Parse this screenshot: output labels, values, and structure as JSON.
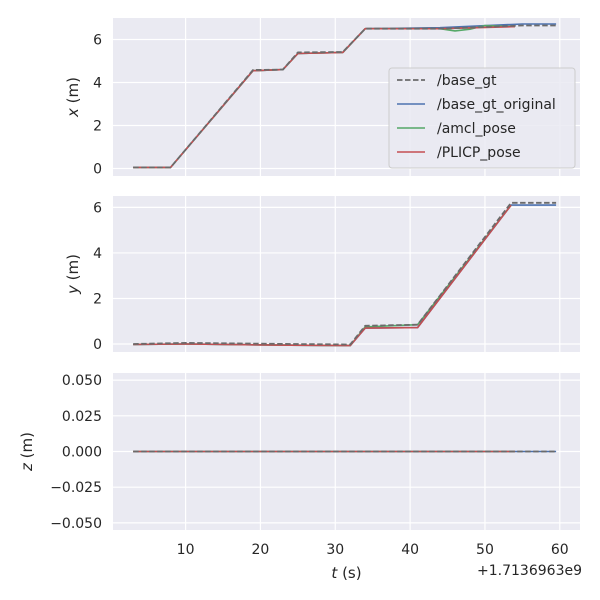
{
  "chart_data": {
    "type": "line",
    "x_offset_label": "+1.7136963e9",
    "xlabel_var": "t",
    "xlabel_unit": " (s)",
    "xlim": [
      0.3,
      62.7
    ],
    "xticks": [
      10,
      20,
      30,
      40,
      50,
      60
    ],
    "legend": {
      "location": "upper-right of top panel",
      "entries": [
        {
          "name": "/base_gt",
          "color": "#6b6b6b",
          "style": "dashed"
        },
        {
          "name": "/base_gt_original",
          "color": "#4c72b0",
          "style": "solid"
        },
        {
          "name": "/amcl_pose",
          "color": "#55a868",
          "style": "solid"
        },
        {
          "name": "/PLICP_pose",
          "color": "#c44e52",
          "style": "solid"
        }
      ]
    },
    "grid": true,
    "subplots": [
      {
        "ylabel_var": "x",
        "ylabel_unit": " (m)",
        "ylim": [
          -0.35,
          7.0
        ],
        "yticks": [
          0,
          2,
          4,
          6
        ],
        "ytick_labels": [
          "0",
          "2",
          "4",
          "6"
        ],
        "series": [
          {
            "name": "/base_gt",
            "x": [
              3,
              8,
              19,
              23,
              25,
              31,
              34,
              44,
              55,
              59.5
            ],
            "y": [
              0.05,
              0.05,
              4.58,
              4.6,
              5.4,
              5.42,
              6.5,
              6.5,
              6.65,
              6.65
            ]
          },
          {
            "name": "/base_gt_original",
            "x": [
              3,
              8,
              19,
              23,
              25,
              31,
              34,
              44,
              55,
              59.5
            ],
            "y": [
              0.05,
              0.05,
              4.55,
              4.6,
              5.35,
              5.4,
              6.5,
              6.55,
              6.72,
              6.72
            ]
          },
          {
            "name": "/amcl_pose",
            "x": [
              3,
              8,
              19,
              23,
              25,
              31,
              34,
              44,
              46,
              48,
              50,
              54
            ],
            "y": [
              0.05,
              0.05,
              4.55,
              4.6,
              5.35,
              5.4,
              6.5,
              6.5,
              6.4,
              6.48,
              6.65,
              6.6
            ]
          },
          {
            "name": "/PLICP_pose",
            "x": [
              3,
              8,
              19,
              23,
              25,
              31,
              34,
              44,
              54
            ],
            "y": [
              0.05,
              0.05,
              4.55,
              4.6,
              5.35,
              5.4,
              6.5,
              6.5,
              6.6
            ]
          }
        ]
      },
      {
        "ylabel_var": "y",
        "ylabel_unit": " (m)",
        "ylim": [
          -0.35,
          6.5
        ],
        "yticks": [
          0,
          2,
          4,
          6
        ],
        "ytick_labels": [
          "0",
          "2",
          "4",
          "6"
        ],
        "series": [
          {
            "name": "/base_gt",
            "x": [
              3,
              10,
              24,
              32,
              34,
              41,
              53.5,
              59.5
            ],
            "y": [
              0.0,
              0.05,
              0.0,
              -0.02,
              0.8,
              0.85,
              6.2,
              6.2
            ]
          },
          {
            "name": "/base_gt_original",
            "x": [
              3,
              10,
              24,
              32,
              34,
              41,
              53.5,
              59.5
            ],
            "y": [
              -0.02,
              0.0,
              -0.05,
              -0.07,
              0.7,
              0.72,
              6.1,
              6.1
            ]
          },
          {
            "name": "/amcl_pose",
            "x": [
              3,
              10,
              24,
              32,
              34,
              41,
              53.5
            ],
            "y": [
              -0.02,
              0.0,
              -0.05,
              -0.07,
              0.75,
              0.85,
              6.1
            ]
          },
          {
            "name": "/PLICP_pose",
            "x": [
              3,
              10,
              24,
              32,
              34,
              41,
              53.5
            ],
            "y": [
              -0.02,
              0.0,
              -0.05,
              -0.07,
              0.7,
              0.72,
              6.1
            ]
          }
        ]
      },
      {
        "ylabel_var": "z",
        "ylabel_unit": " (m)",
        "ylim": [
          -0.055,
          0.055
        ],
        "yticks": [
          0.05,
          0.025,
          0.0,
          -0.025,
          -0.05
        ],
        "ytick_labels": [
          "0.050",
          "0.025",
          "0.000",
          "−0.025",
          "−0.050"
        ],
        "series": [
          {
            "name": "/base_gt",
            "x": [
              3,
              59.5
            ],
            "y": [
              0,
              0
            ]
          },
          {
            "name": "/base_gt_original",
            "x": [
              3,
              59.5
            ],
            "y": [
              0,
              0
            ]
          },
          {
            "name": "/amcl_pose",
            "x": [
              3,
              54
            ],
            "y": [
              0,
              0
            ]
          },
          {
            "name": "/PLICP_pose",
            "x": [
              3,
              54
            ],
            "y": [
              0,
              0
            ]
          }
        ]
      }
    ]
  }
}
